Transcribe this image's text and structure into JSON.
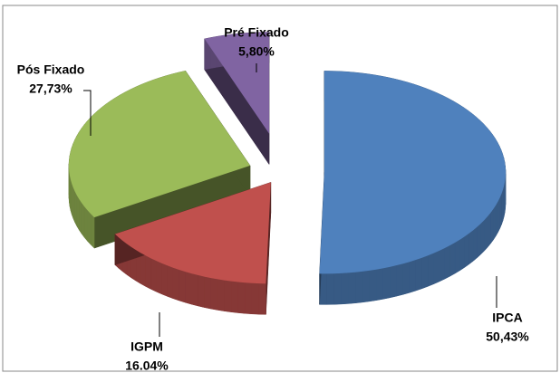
{
  "chart_data": {
    "type": "pie3d",
    "categories": [
      "IPCA",
      "IGPM",
      "Pós Fixado",
      "Pré Fixado"
    ],
    "values": [
      50.43,
      16.04,
      27.73,
      5.8
    ],
    "value_labels": [
      "50,43%",
      "16.04%",
      "27,73%",
      "5,80%"
    ],
    "colors": [
      "#4f81bd",
      "#c0504d",
      "#9bbb59",
      "#8064a2"
    ]
  }
}
